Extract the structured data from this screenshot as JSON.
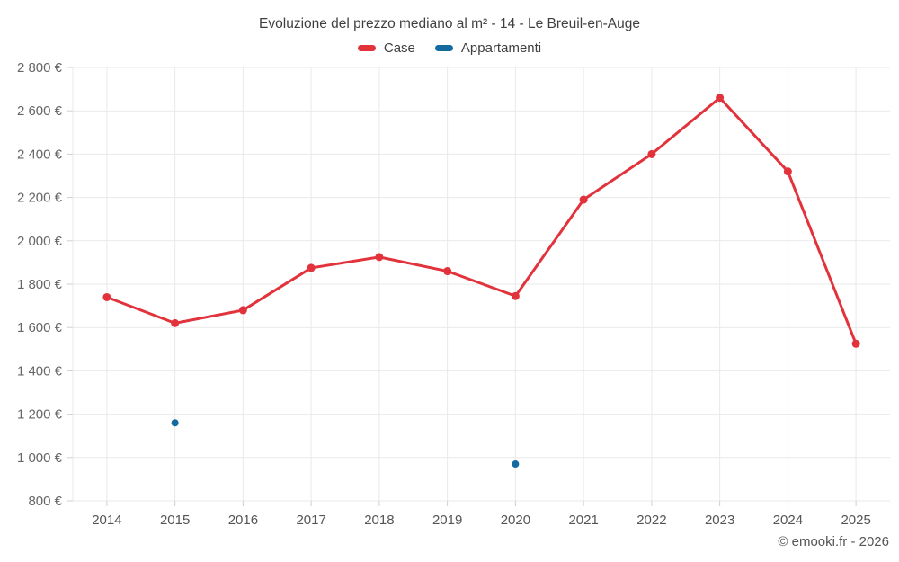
{
  "chart_data": {
    "type": "line",
    "title": "Evoluzione del prezzo mediano al m² - 14 - Le Breuil-en-Auge",
    "categories": [
      "2014",
      "2015",
      "2016",
      "2017",
      "2018",
      "2019",
      "2020",
      "2021",
      "2022",
      "2023",
      "2024",
      "2025"
    ],
    "series": [
      {
        "name": "Case",
        "color": "#e2333c",
        "mode": "line+markers",
        "values": [
          1740,
          1620,
          1680,
          1875,
          1925,
          1860,
          1745,
          2190,
          2400,
          2660,
          2320,
          1525
        ]
      },
      {
        "name": "Appartamenti",
        "color": "#136a9e",
        "mode": "markers",
        "values": [
          null,
          1160,
          null,
          null,
          null,
          null,
          970,
          null,
          null,
          null,
          null,
          null
        ]
      }
    ],
    "ylim": [
      800,
      2800
    ],
    "ytick_values": [
      800,
      1000,
      1200,
      1400,
      1600,
      1800,
      2000,
      2200,
      2400,
      2600,
      2800
    ],
    "ytick_labels": [
      "800 €",
      "1 000 €",
      "1 200 €",
      "1 400 €",
      "1 600 €",
      "1 800 €",
      "2 000 €",
      "2 200 €",
      "2 400 €",
      "2 600 €",
      "2 800 €"
    ],
    "grid": true,
    "legend_position": "top",
    "footer": "© emooki.fr - 2026",
    "colors": {
      "grid": "#e9e9e9",
      "tick": "#cfcfcf",
      "y_label": "#666666",
      "x_label": "#555555",
      "title": "#3f3f3f"
    }
  }
}
